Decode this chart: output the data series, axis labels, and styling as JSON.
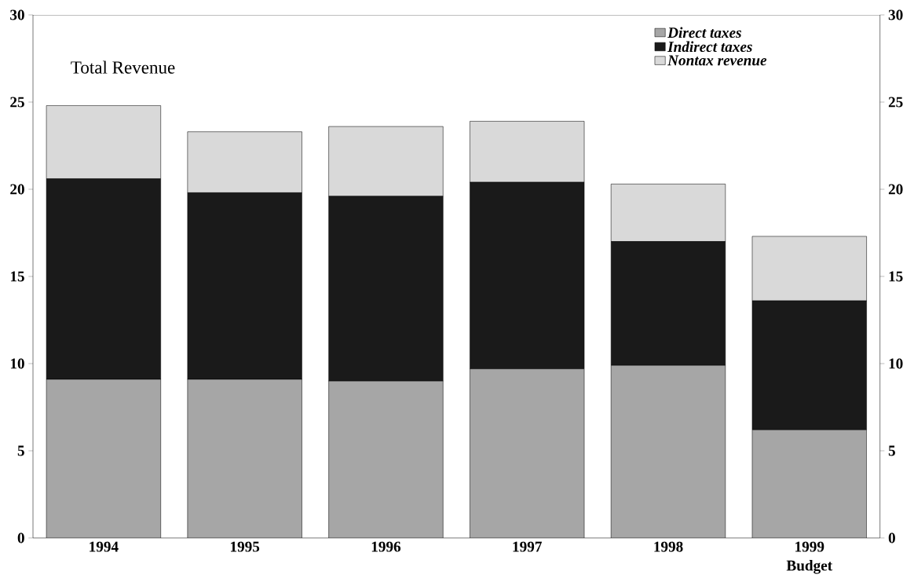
{
  "chart_data": {
    "type": "bar",
    "stacked": true,
    "title": "Total Revenue",
    "categories": [
      "1994",
      "1995",
      "1996",
      "1997",
      "1998",
      "1999 Budget"
    ],
    "series": [
      {
        "name": "Direct taxes",
        "color": "#a6a6a6",
        "values": [
          9.1,
          9.1,
          9.0,
          9.7,
          9.9,
          6.2
        ]
      },
      {
        "name": "Indirect taxes",
        "color": "#1a1a1a",
        "values": [
          11.5,
          10.7,
          10.6,
          10.7,
          7.1,
          7.4
        ]
      },
      {
        "name": "Nontax revenue",
        "color": "#d9d9d9",
        "values": [
          4.2,
          3.5,
          4.0,
          3.5,
          3.3,
          3.7
        ]
      }
    ],
    "ylim": [
      0,
      30
    ],
    "yticks": [
      0,
      5,
      10,
      15,
      20,
      25,
      30
    ],
    "y2lim": [
      0,
      30
    ],
    "y2ticks": [
      0,
      5,
      10,
      15,
      20,
      25,
      30
    ],
    "grid": false,
    "legend": "top right"
  }
}
